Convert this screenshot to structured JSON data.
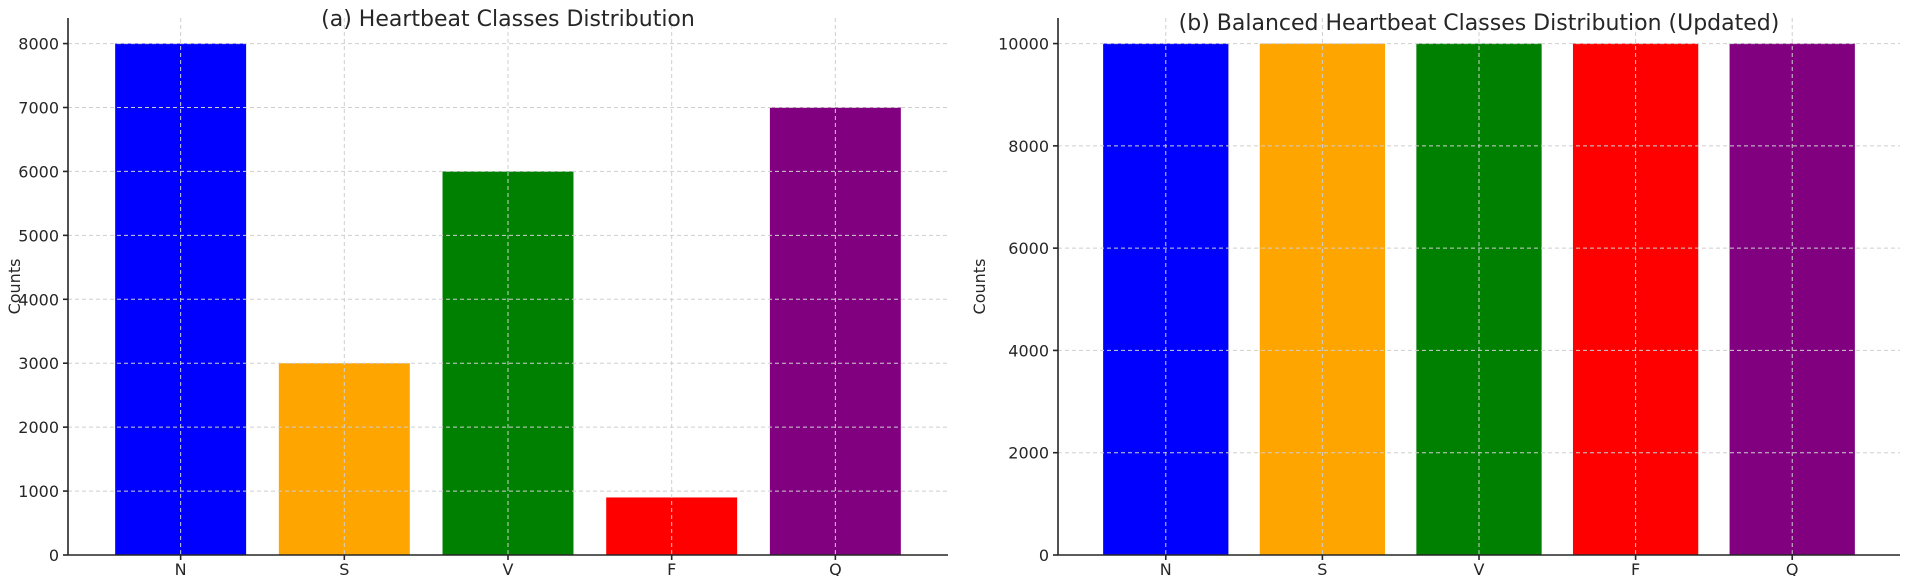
{
  "chart_data": [
    {
      "type": "bar",
      "title": "(a) Heartbeat Classes Distribution",
      "xlabel": "",
      "ylabel": "Counts",
      "categories": [
        "N",
        "S",
        "V",
        "F",
        "Q"
      ],
      "values": [
        8000,
        3000,
        6000,
        900,
        7000
      ],
      "colors": [
        "#0000ff",
        "#ffa500",
        "#008000",
        "#ff0000",
        "#800080"
      ],
      "ylim": [
        0,
        8400
      ],
      "yticks": [
        0,
        1000,
        2000,
        3000,
        4000,
        5000,
        6000,
        7000,
        8000
      ],
      "grid": true
    },
    {
      "type": "bar",
      "title": "(b) Balanced Heartbeat Classes Distribution (Updated)",
      "xlabel": "",
      "ylabel": "Counts",
      "categories": [
        "N",
        "S",
        "V",
        "F",
        "Q"
      ],
      "values": [
        10000,
        10000,
        10000,
        10000,
        10000
      ],
      "colors": [
        "#0000ff",
        "#ffa500",
        "#008000",
        "#ff0000",
        "#800080"
      ],
      "ylim": [
        0,
        10500
      ],
      "yticks": [
        0,
        2000,
        4000,
        6000,
        8000,
        10000
      ],
      "grid": true
    }
  ]
}
